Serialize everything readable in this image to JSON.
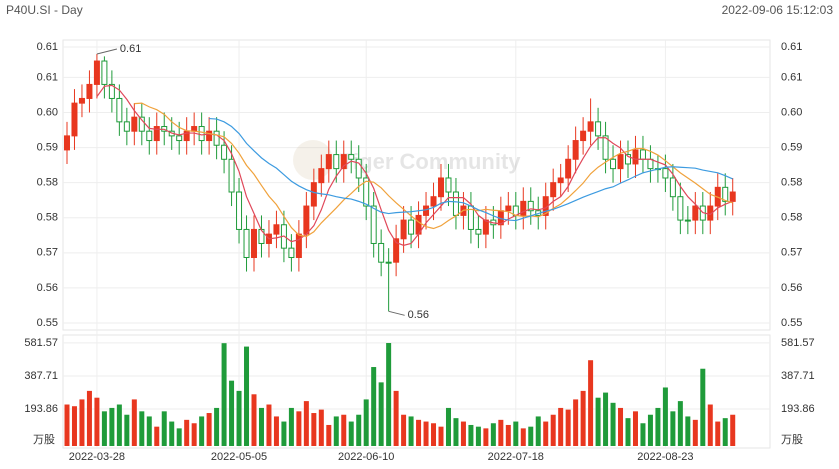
{
  "header": {
    "symbol": "P40U.SI - Day",
    "timestamp": "2022-09-06 15:12:03"
  },
  "chart_data": [
    {
      "type": "candlestick",
      "categories": [
        null,
        null,
        null,
        null,
        "2022-03-28",
        null,
        null,
        null,
        null,
        null,
        null,
        null,
        null,
        null,
        null,
        null,
        null,
        null,
        null,
        null,
        null,
        null,
        null,
        "2022-05-05",
        null,
        null,
        null,
        null,
        null,
        null,
        null,
        null,
        null,
        null,
        null,
        null,
        null,
        null,
        null,
        null,
        "2022-06-10",
        null,
        null,
        null,
        null,
        null,
        null,
        null,
        null,
        null,
        null,
        null,
        null,
        null,
        null,
        null,
        null,
        null,
        null,
        null,
        "2022-07-18",
        null,
        null,
        null,
        null,
        null,
        null,
        null,
        null,
        null,
        null,
        null,
        null,
        null,
        null,
        null,
        null,
        null,
        null,
        null,
        "2022-08-23",
        null,
        null,
        null,
        null,
        null,
        null,
        null,
        null,
        null
      ],
      "open": [
        0.592,
        0.595,
        0.602,
        0.603,
        0.606,
        0.611,
        0.606,
        0.603,
        0.598,
        0.596,
        0.599,
        0.596,
        0.594,
        0.597,
        0.596,
        0.595,
        0.594,
        0.596,
        0.597,
        0.594,
        0.596,
        0.593,
        0.59,
        0.583,
        0.575,
        0.569,
        0.575,
        0.572,
        0.574,
        0.576,
        0.571,
        0.569,
        0.574,
        0.58,
        0.585,
        0.588,
        0.591,
        0.588,
        0.591,
        0.59,
        0.586,
        0.58,
        0.572,
        0.568,
        0.568,
        0.573,
        0.577,
        0.574,
        0.578,
        0.58,
        0.582,
        0.586,
        0.583,
        0.578,
        0.58,
        0.575,
        0.574,
        0.577,
        0.576,
        0.579,
        0.58,
        0.578,
        0.581,
        0.579,
        0.578,
        0.582,
        0.585,
        0.586,
        0.59,
        0.594,
        0.596,
        0.598,
        0.595,
        0.59,
        0.588,
        0.591,
        0.589,
        0.592,
        0.59,
        0.588,
        0.588,
        0.586,
        0.582,
        0.577,
        0.577,
        0.58,
        0.577,
        0.58,
        0.584,
        0.581
      ],
      "high": [
        0.598,
        0.605,
        0.606,
        0.609,
        0.6125,
        0.612,
        0.609,
        0.606,
        0.601,
        0.602,
        0.602,
        0.599,
        0.6,
        0.6,
        0.599,
        0.598,
        0.599,
        0.6,
        0.6,
        0.599,
        0.599,
        0.596,
        0.593,
        0.586,
        0.578,
        0.578,
        0.578,
        0.577,
        0.579,
        0.579,
        0.574,
        0.577,
        0.583,
        0.588,
        0.591,
        0.594,
        0.594,
        0.594,
        0.594,
        0.593,
        0.589,
        0.583,
        0.575,
        0.571,
        0.576,
        0.58,
        0.58,
        0.581,
        0.583,
        0.585,
        0.589,
        0.589,
        0.586,
        0.583,
        0.583,
        0.578,
        0.58,
        0.58,
        0.582,
        0.583,
        0.583,
        0.584,
        0.584,
        0.582,
        0.585,
        0.588,
        0.589,
        0.593,
        0.597,
        0.599,
        0.603,
        0.601,
        0.598,
        0.593,
        0.594,
        0.594,
        0.595,
        0.595,
        0.593,
        0.591,
        0.591,
        0.589,
        0.585,
        0.58,
        0.583,
        0.583,
        0.583,
        0.587,
        0.587,
        0.586
      ],
      "low": [
        0.589,
        0.592,
        0.599,
        0.6,
        0.603,
        0.603,
        0.6,
        0.595,
        0.593,
        0.593,
        0.593,
        0.591,
        0.591,
        0.593,
        0.592,
        0.591,
        0.591,
        0.593,
        0.591,
        0.591,
        0.59,
        0.587,
        0.58,
        0.572,
        0.566,
        0.566,
        0.569,
        0.569,
        0.571,
        0.568,
        0.566,
        0.566,
        0.571,
        0.577,
        0.582,
        0.585,
        0.585,
        0.585,
        0.587,
        0.583,
        0.577,
        0.569,
        0.565,
        0.5575,
        0.565,
        0.57,
        0.571,
        0.571,
        0.575,
        0.577,
        0.579,
        0.58,
        0.575,
        0.575,
        0.572,
        0.571,
        0.571,
        0.573,
        0.573,
        0.576,
        0.575,
        0.575,
        0.576,
        0.575,
        0.575,
        0.579,
        0.582,
        0.583,
        0.587,
        0.591,
        0.593,
        0.592,
        0.587,
        0.585,
        0.585,
        0.586,
        0.586,
        0.587,
        0.585,
        0.585,
        0.583,
        0.579,
        0.574,
        0.574,
        0.574,
        0.574,
        0.574,
        0.577,
        0.578,
        0.578
      ],
      "close": [
        0.595,
        0.602,
        0.603,
        0.606,
        0.611,
        0.606,
        0.603,
        0.598,
        0.596,
        0.599,
        0.596,
        0.594,
        0.597,
        0.596,
        0.595,
        0.594,
        0.596,
        0.597,
        0.594,
        0.596,
        0.593,
        0.59,
        0.583,
        0.575,
        0.569,
        0.575,
        0.572,
        0.574,
        0.576,
        0.571,
        0.569,
        0.574,
        0.58,
        0.585,
        0.588,
        0.591,
        0.588,
        0.591,
        0.59,
        0.586,
        0.58,
        0.572,
        0.568,
        0.568,
        0.573,
        0.577,
        0.574,
        0.578,
        0.58,
        0.582,
        0.586,
        0.583,
        0.578,
        0.58,
        0.575,
        0.574,
        0.577,
        0.576,
        0.579,
        0.58,
        0.578,
        0.581,
        0.579,
        0.578,
        0.582,
        0.585,
        0.586,
        0.59,
        0.594,
        0.596,
        0.598,
        0.595,
        0.59,
        0.588,
        0.591,
        0.589,
        0.592,
        0.59,
        0.588,
        0.588,
        0.586,
        0.582,
        0.577,
        0.577,
        0.58,
        0.577,
        0.58,
        0.584,
        0.581,
        0.583
      ],
      "series": [
        {
          "color": "#e0485a",
          "values": [
            null,
            null,
            null,
            null,
            0.6034,
            0.6056,
            0.6058,
            0.6048,
            0.6028,
            0.6004,
            0.5984,
            0.5966,
            0.5964,
            0.5964,
            0.5956,
            0.5952,
            0.5956,
            0.5956,
            0.5952,
            0.5954,
            0.5952,
            0.594,
            0.5912,
            0.5874,
            0.582,
            0.5784,
            0.5748,
            0.573,
            0.5732,
            0.5736,
            0.5724,
            0.5728,
            0.574,
            0.5758,
            0.5792,
            0.5836,
            0.5864,
            0.5886,
            0.5896,
            0.5892,
            0.587,
            0.5838,
            0.5792,
            0.5748,
            0.5722,
            0.5716,
            0.572,
            0.574,
            0.5764,
            0.5782,
            0.58,
            0.5818,
            0.5818,
            0.5818,
            0.5804,
            0.578,
            0.5768,
            0.5764,
            0.5762,
            0.5772,
            0.578,
            0.5788,
            0.5794,
            0.5792,
            0.5796,
            0.581,
            0.582,
            0.5842,
            0.5874,
            0.5902,
            0.5928,
            0.5946,
            0.5946,
            0.5934,
            0.5924,
            0.5906,
            0.59,
            0.59,
            0.59,
            0.5894,
            0.5888,
            0.5868,
            0.5842,
            0.582,
            0.5804,
            0.5786,
            0.5782,
            0.5796,
            0.5804,
            0.581
          ]
        },
        {
          "color": "#f0a23c",
          "values": [
            null,
            null,
            null,
            null,
            null,
            null,
            null,
            null,
            null,
            0.6019,
            0.602,
            0.6012,
            0.6006,
            0.5996,
            0.598,
            0.5968,
            0.5961,
            0.596,
            0.5958,
            0.5955,
            0.5952,
            0.5948,
            0.5934,
            0.5913,
            0.5887,
            0.5868,
            0.5844,
            0.5821,
            0.5803,
            0.5778,
            0.5754,
            0.5738,
            0.5735,
            0.5745,
            0.5764,
            0.578,
            0.5796,
            0.5813,
            0.5827,
            0.5842,
            0.5853,
            0.5851,
            0.5839,
            0.5822,
            0.5807,
            0.5793,
            0.5779,
            0.5766,
            0.5756,
            0.5752,
            0.5758,
            0.5769,
            0.5779,
            0.5791,
            0.5793,
            0.579,
            0.5793,
            0.5791,
            0.579,
            0.5788,
            0.578,
            0.5778,
            0.5779,
            0.5777,
            0.5784,
            0.5795,
            0.5804,
            0.5818,
            0.5833,
            0.5849,
            0.5869,
            0.5883,
            0.5894,
            0.5904,
            0.5913,
            0.5917,
            0.5923,
            0.5923,
            0.5917,
            0.5909,
            0.5897,
            0.5884,
            0.5871,
            0.586,
            0.5849,
            0.5837,
            0.5825,
            0.5819,
            0.5812,
            0.5807
          ]
        },
        {
          "color": "#3d9be0",
          "values": [
            null,
            null,
            null,
            null,
            null,
            null,
            null,
            null,
            null,
            null,
            null,
            null,
            null,
            null,
            null,
            null,
            null,
            null,
            null,
            0.5987,
            0.5986,
            0.598,
            0.597,
            0.5955,
            0.5934,
            0.5918,
            0.5903,
            0.5891,
            0.5881,
            0.5867,
            0.5853,
            0.5843,
            0.5835,
            0.5829,
            0.5826,
            0.5824,
            0.582,
            0.5817,
            0.5815,
            0.581,
            0.5804,
            0.5795,
            0.5787,
            0.5784,
            0.5786,
            0.5787,
            0.5788,
            0.579,
            0.5792,
            0.5797,
            0.5806,
            0.581,
            0.5809,
            0.5807,
            0.58,
            0.5792,
            0.5786,
            0.5779,
            0.5773,
            0.577,
            0.5769,
            0.5774,
            0.5779,
            0.5784,
            0.5789,
            0.5793,
            0.5799,
            0.5805,
            0.5812,
            0.5819,
            0.5825,
            0.5831,
            0.5837,
            0.5841,
            0.5849,
            0.5856,
            0.5864,
            0.5871,
            0.5875,
            0.5879,
            0.5883,
            0.5884,
            0.5883,
            0.5882,
            0.5881,
            0.5877,
            0.5874,
            0.5871,
            0.5865,
            0.5858
          ]
        }
      ],
      "ylim": [
        0.555,
        0.614
      ],
      "yticks": [
        {
          "value": 0.614,
          "label": "0.61"
        },
        {
          "value": 0.6075,
          "label": "0.61"
        },
        {
          "value": 0.6,
          "label": "0.60"
        },
        {
          "value": 0.5925,
          "label": "0.59"
        },
        {
          "value": 0.585,
          "label": "0.58"
        },
        {
          "value": 0.5775,
          "label": "0.58"
        },
        {
          "value": 0.57,
          "label": "0.57"
        },
        {
          "value": 0.5625,
          "label": "0.56"
        },
        {
          "value": 0.555,
          "label": "0.55"
        }
      ],
      "up_color": "#e8371f",
      "down_color": "#1f9b3a",
      "high_label": {
        "value": 0.6125,
        "label": "0.61"
      },
      "low_label": {
        "value": 0.5575,
        "label": "0.56"
      },
      "watermark": "Tiger Community"
    },
    {
      "type": "bar",
      "values": [
        220,
        210,
        250,
        300,
        260,
        180,
        200,
        220,
        160,
        250,
        180,
        150,
        90,
        180,
        120,
        80,
        130,
        110,
        150,
        170,
        200,
        580,
        360,
        300,
        560,
        280,
        200,
        220,
        150,
        120,
        200,
        180,
        240,
        170,
        190,
        100,
        150,
        160,
        120,
        160,
        250,
        440,
        350,
        581,
        300,
        160,
        150,
        130,
        120,
        110,
        90,
        200,
        140,
        120,
        100,
        90,
        80,
        110,
        130,
        100,
        120,
        80,
        90,
        150,
        120,
        160,
        200,
        190,
        250,
        300,
        480,
        260,
        290,
        230,
        200,
        140,
        180,
        110,
        160,
        200,
        320,
        180,
        240,
        150,
        130,
        430,
        220,
        120,
        140,
        160
      ],
      "ylim": [
        0,
        628
      ],
      "yticks": [
        193.86,
        387.71,
        581.57
      ],
      "unit": "万股"
    }
  ]
}
